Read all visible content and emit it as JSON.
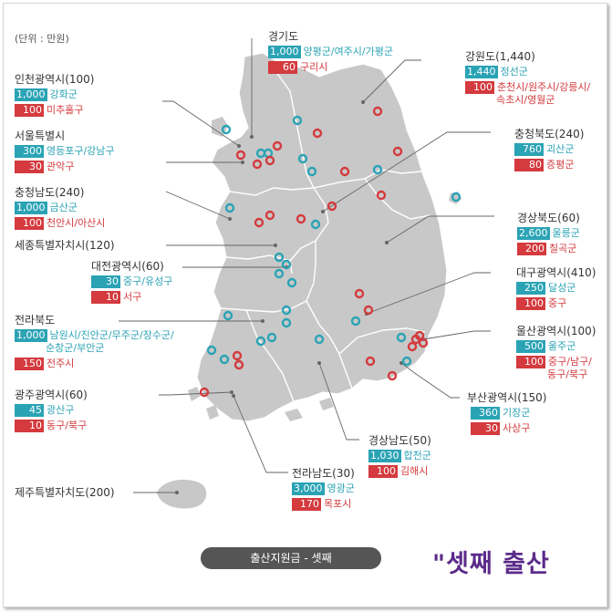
{
  "unit_label": "(단위 : 만원)",
  "caption": "출산지원금 - 셋째",
  "watermark": "\"셋째 출산",
  "colors": {
    "teal": "#2aa3b5",
    "red": "#d43a3e",
    "land": "#c8c8c8",
    "border": "#ffffff",
    "leader": "#666666"
  },
  "regions": [
    {
      "id": "gyeonggi",
      "name": "경기도",
      "teal_value": "1,000",
      "teal_text": "양평군/여주시/가평군",
      "red_value": "60",
      "red_text": "구리시"
    },
    {
      "id": "gangwon",
      "name": "강원도(1,440)",
      "teal_value": "1,440",
      "teal_text": "정선군",
      "red_value": "100",
      "red_text": "춘천시/원주시/강릉시/",
      "red_text2": "속초시/영월군"
    },
    {
      "id": "incheon",
      "name": "인천광역시(100)",
      "teal_value": "1,000",
      "teal_text": "강화군",
      "red_value": "100",
      "red_text": "미추홀구"
    },
    {
      "id": "seoul",
      "name": "서울특별시",
      "teal_value": "300",
      "teal_text": "영등포구/강남구",
      "red_value": "30",
      "red_text": "관악구"
    },
    {
      "id": "chungbuk",
      "name": "충청북도(240)",
      "teal_value": "760",
      "teal_text": "괴산군",
      "red_value": "80",
      "red_text": "증평군"
    },
    {
      "id": "chungnam",
      "name": "충청남도(240)",
      "teal_value": "1,000",
      "teal_text": "금산군",
      "red_value": "100",
      "red_text": "천안시/아산시"
    },
    {
      "id": "gyeongbuk",
      "name": "경상북도(60)",
      "teal_value": "2,600",
      "teal_text": "울릉군",
      "red_value": "200",
      "red_text": "칠곡군"
    },
    {
      "id": "sejong",
      "name": "세종특별자치시(120)"
    },
    {
      "id": "daejeon",
      "name": "대전광역시(60)",
      "teal_value": "30",
      "teal_text": "중구/유성구",
      "red_value": "10",
      "red_text": "서구"
    },
    {
      "id": "daegu",
      "name": "대구광역시(410)",
      "teal_value": "250",
      "teal_text": "달성군",
      "red_value": "100",
      "red_text": "중구"
    },
    {
      "id": "jeonbuk",
      "name": "전라북도",
      "teal_value": "1,000",
      "teal_text": "남원시/진안군/무주군/장수군/",
      "teal_text2": "순창군/부안군",
      "red_value": "150",
      "red_text": "전주시"
    },
    {
      "id": "ulsan",
      "name": "울산광역시(100)",
      "teal_value": "500",
      "teal_text": "울주군",
      "red_value": "100",
      "red_text": "중구/남구/",
      "red_text2": "동구/북구"
    },
    {
      "id": "gwangju",
      "name": "광주광역시(60)",
      "teal_value": "45",
      "teal_text": "광산구",
      "red_value": "10",
      "red_text": "동구/북구"
    },
    {
      "id": "busan",
      "name": "부산광역시(150)",
      "teal_value": "360",
      "teal_text": "기장군",
      "red_value": "30",
      "red_text": "사상구"
    },
    {
      "id": "gyeongnam",
      "name": "경상남도(50)",
      "teal_value": "1,030",
      "teal_text": "합천군",
      "red_value": "100",
      "red_text": "김해시"
    },
    {
      "id": "jeonnam",
      "name": "전라남도(30)",
      "teal_value": "3,000",
      "teal_text": "영광군",
      "red_value": "170",
      "red_text": "목포시"
    },
    {
      "id": "jeju",
      "name": "제주특별자치도(200)"
    }
  ]
}
